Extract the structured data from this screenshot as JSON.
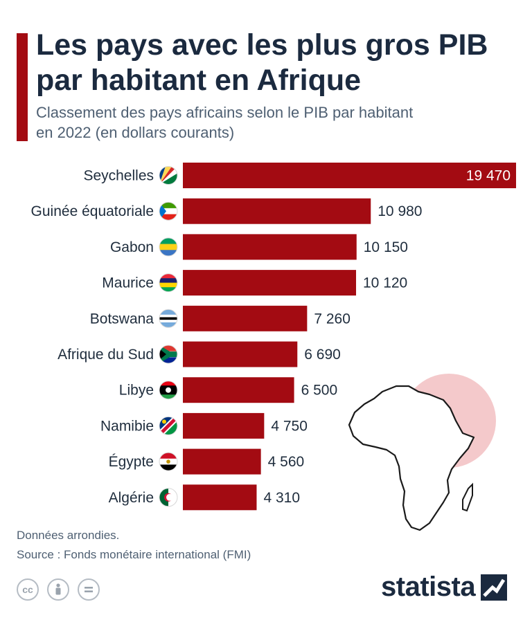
{
  "title": "Les pays avec les plus gros PIB par habitant en Afrique",
  "subtitle": "Classement des pays africains selon le PIB par habitant en 2022 (en dollars courants)",
  "chart_data": {
    "type": "bar",
    "orientation": "horizontal",
    "categories": [
      "Seychelles",
      "Guinée équatoriale",
      "Gabon",
      "Maurice",
      "Botswana",
      "Afrique du Sud",
      "Libye",
      "Namibie",
      "Égypte",
      "Algérie"
    ],
    "values": [
      19470,
      10980,
      10150,
      10120,
      7260,
      6690,
      6500,
      4750,
      4560,
      4310
    ],
    "value_labels": [
      "19 470",
      "10 980",
      "10 150",
      "10 120",
      "7 260",
      "6 690",
      "6 500",
      "4 750",
      "4 560",
      "4 310"
    ],
    "flag_icons": [
      "flag-seychelles-icon",
      "flag-equatorial-guinea-icon",
      "flag-gabon-icon",
      "flag-mauritius-icon",
      "flag-botswana-icon",
      "flag-south-africa-icon",
      "flag-libya-icon",
      "flag-namibia-icon",
      "flag-egypt-icon",
      "flag-algeria-icon"
    ],
    "xlim": [
      0,
      19470
    ],
    "bar_color": "#a30b12",
    "grid": false
  },
  "footnote": "Données arrondies.",
  "source": "Source : Fonds monétaire international (FMI)",
  "brand": "statista",
  "colors": {
    "accent": "#a30b12",
    "title": "#1b2a3f",
    "circle": "#f4c9cb"
  }
}
